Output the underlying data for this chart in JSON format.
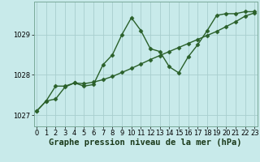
{
  "xlabel": "Graphe pression niveau de la mer (hPa)",
  "background_color": "#c8eaea",
  "grid_color": "#a8cece",
  "line_color": "#2a602a",
  "series1": [
    [
      0,
      1027.1
    ],
    [
      1,
      1027.35
    ],
    [
      2,
      1027.4
    ],
    [
      3,
      1027.7
    ],
    [
      4,
      1027.8
    ],
    [
      5,
      1027.72
    ],
    [
      6,
      1027.76
    ],
    [
      7,
      1028.25
    ],
    [
      8,
      1028.5
    ],
    [
      9,
      1029.0
    ],
    [
      10,
      1029.42
    ],
    [
      11,
      1029.1
    ],
    [
      12,
      1028.65
    ],
    [
      13,
      1028.58
    ],
    [
      14,
      1028.2
    ],
    [
      15,
      1028.05
    ],
    [
      16,
      1028.45
    ],
    [
      17,
      1028.75
    ],
    [
      18,
      1029.1
    ],
    [
      19,
      1029.48
    ],
    [
      20,
      1029.52
    ],
    [
      21,
      1029.52
    ],
    [
      22,
      1029.57
    ],
    [
      23,
      1029.57
    ]
  ],
  "series2": [
    [
      0,
      1027.1
    ],
    [
      1,
      1027.35
    ],
    [
      2,
      1027.72
    ],
    [
      3,
      1027.72
    ],
    [
      4,
      1027.8
    ],
    [
      5,
      1027.78
    ],
    [
      6,
      1027.82
    ],
    [
      7,
      1027.88
    ],
    [
      8,
      1027.96
    ],
    [
      9,
      1028.06
    ],
    [
      10,
      1028.16
    ],
    [
      11,
      1028.27
    ],
    [
      12,
      1028.38
    ],
    [
      13,
      1028.48
    ],
    [
      14,
      1028.58
    ],
    [
      15,
      1028.68
    ],
    [
      16,
      1028.78
    ],
    [
      17,
      1028.88
    ],
    [
      18,
      1028.98
    ],
    [
      19,
      1029.08
    ],
    [
      20,
      1029.2
    ],
    [
      21,
      1029.32
    ],
    [
      22,
      1029.46
    ],
    [
      23,
      1029.54
    ]
  ],
  "ylim": [
    1026.72,
    1029.82
  ],
  "yticks": [
    1027,
    1028,
    1029
  ],
  "xlim": [
    -0.3,
    23.3
  ],
  "xticks": [
    0,
    1,
    2,
    3,
    4,
    5,
    6,
    7,
    8,
    9,
    10,
    11,
    12,
    13,
    14,
    15,
    16,
    17,
    18,
    19,
    20,
    21,
    22,
    23
  ],
  "marker": "D",
  "markersize": 2.5,
  "linewidth": 1.0,
  "xlabel_fontsize": 7.5,
  "tick_fontsize": 6.0
}
